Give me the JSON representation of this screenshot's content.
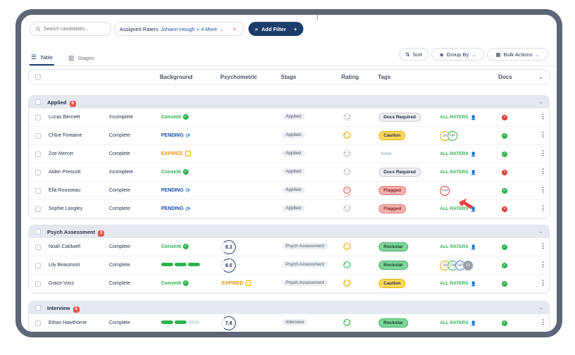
{
  "toolbar": {
    "search_placeholder": "Search candidates...",
    "raters_label": "Assigned Raters",
    "raters_value": "Johann Hough + 4 More",
    "add_filter": "Add Filter"
  },
  "views": {
    "table": "Table",
    "stages": "Stages"
  },
  "actions": {
    "sort": "Sort",
    "group_by": "Group By",
    "bulk": "Bulk Actions"
  },
  "columns": {
    "background": "Background",
    "psychometric": "Psychometric",
    "stage": "Stage",
    "rating": "Rating",
    "tags": "Tags",
    "docs": "Docs"
  },
  "all_raters": "ALL RATERS",
  "groups": [
    {
      "name": "Applied",
      "count": "6",
      "rows": [
        {
          "name": "Lucas Bennett",
          "status": "Incomplete",
          "bg": "Consent",
          "bg_type": "consent",
          "psy_type": "none",
          "stage": "Applied",
          "rating": "neutral",
          "tag": "Docs Required",
          "tag_type": "docs",
          "raters": "all",
          "docs": "no"
        },
        {
          "name": "Chloe Fontaine",
          "status": "Complete",
          "bg": "PENDING",
          "bg_type": "pending",
          "psy_type": "none",
          "stage": "Applied",
          "rating": "yellow",
          "tag": "Caution",
          "tag_type": "caution",
          "raters": [
            "JH",
            "HP"
          ],
          "docs": "ok"
        },
        {
          "name": "Zoe Mercer",
          "status": "Complete",
          "bg": "EXPIRED",
          "bg_type": "expired",
          "psy_type": "none",
          "stage": "Applied",
          "rating": "neutral",
          "tag": "None",
          "tag_type": "none",
          "raters": "all",
          "docs": "ok"
        },
        {
          "name": "Aiden Prescott",
          "status": "Incomplete",
          "bg": "Consent",
          "bg_type": "consent",
          "psy_type": "none",
          "stage": "Applied",
          "rating": "neutral",
          "tag": "Docs Required",
          "tag_type": "docs",
          "raters": "all",
          "docs": "no"
        },
        {
          "name": "Ella Rousseau",
          "status": "Complete",
          "bg": "PENDING",
          "bg_type": "pending",
          "psy_type": "none",
          "stage": "Applied",
          "rating": "red",
          "tag": "Flagged",
          "tag_type": "flagged",
          "raters": [
            "FM"
          ],
          "docs": "ok"
        },
        {
          "name": "Sophie Langley",
          "status": "Complete",
          "bg": "PENDING",
          "bg_type": "pending",
          "psy_type": "none",
          "stage": "Applied",
          "rating": "neutral",
          "tag": "Flagged",
          "tag_type": "flagged",
          "raters": "all",
          "docs": "no"
        }
      ]
    },
    {
      "name": "Psych Assessment",
      "count": "3",
      "rows": [
        {
          "name": "Noah Caldwell",
          "status": "Complete",
          "bg": "Consent",
          "bg_type": "consent",
          "psy_type": "score",
          "psy": "8.3",
          "stage": "Psych Assessment",
          "rating": "yellow",
          "tag": "Rockstar",
          "tag_type": "rock",
          "raters": "all",
          "docs": "ok"
        },
        {
          "name": "Lily Beaumont",
          "status": "Complete",
          "bg": "",
          "bg_type": "bars3",
          "psy_type": "score",
          "psy": "8.0",
          "stage": "Psych Assessment",
          "rating": "green",
          "tag": "Rockstar",
          "tag_type": "rock",
          "raters": [
            "JH",
            "FM",
            "HP",
            "+1"
          ],
          "docs": "ok"
        },
        {
          "name": "Grace Voss",
          "status": "Complete",
          "bg": "Consent",
          "bg_type": "consent",
          "psy_type": "expired",
          "psy": "EXPIRED",
          "stage": "Psych Assessment",
          "rating": "yellow",
          "tag": "Caution",
          "tag_type": "caution",
          "raters": "all",
          "docs": "ok"
        }
      ]
    },
    {
      "name": "Interview",
      "count": "5",
      "rows": [
        {
          "name": "Ethan Hawthorne",
          "status": "Complete",
          "bg": "",
          "bg_type": "bars2",
          "psy_type": "score",
          "psy": "7.8",
          "stage": "Interview",
          "rating": "green",
          "tag": "Rockstar",
          "tag_type": "rock",
          "raters": "all",
          "docs": "ok"
        }
      ]
    }
  ]
}
